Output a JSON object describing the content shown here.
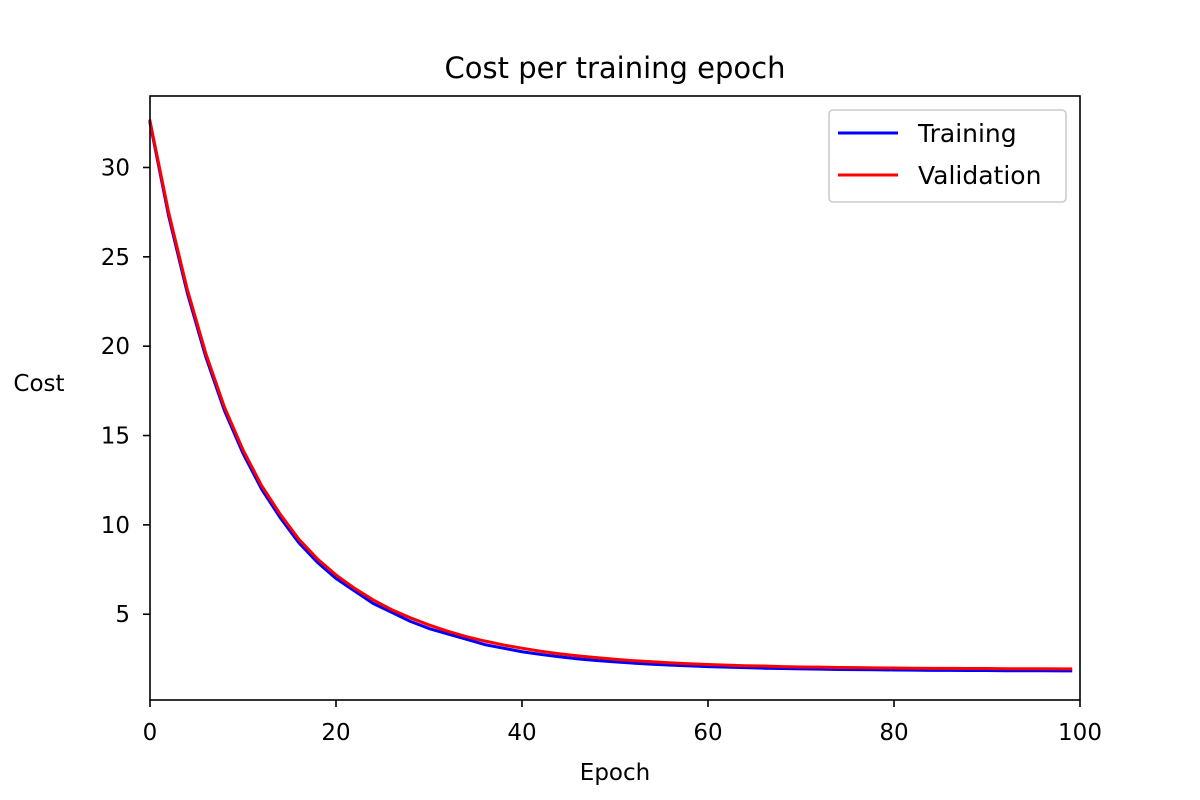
{
  "chart_data": {
    "type": "line",
    "title": "Cost per training epoch",
    "xlabel": "Epoch",
    "ylabel": "Cost",
    "xlim": [
      0,
      100
    ],
    "ylim": [
      0.2,
      34
    ],
    "xticks": [
      0,
      20,
      40,
      60,
      80,
      100
    ],
    "yticks": [
      5,
      10,
      15,
      20,
      25,
      30
    ],
    "grid": false,
    "legend_position": "upper right",
    "x": [
      0,
      2,
      4,
      6,
      8,
      10,
      12,
      14,
      16,
      18,
      20,
      22,
      24,
      26,
      28,
      30,
      32,
      34,
      36,
      38,
      40,
      42,
      44,
      46,
      48,
      50,
      52,
      54,
      56,
      58,
      60,
      62,
      64,
      66,
      68,
      70,
      72,
      74,
      76,
      78,
      80,
      82,
      84,
      86,
      88,
      90,
      92,
      94,
      96,
      98,
      99
    ],
    "series": [
      {
        "name": "Training",
        "color": "#0000ff",
        "values": [
          32.5,
          27.3,
          23.0,
          19.4,
          16.4,
          14.0,
          12.0,
          10.4,
          9.0,
          7.9,
          7.0,
          6.3,
          5.6,
          5.1,
          4.6,
          4.2,
          3.9,
          3.6,
          3.3,
          3.1,
          2.9,
          2.75,
          2.62,
          2.5,
          2.41,
          2.33,
          2.26,
          2.2,
          2.15,
          2.11,
          2.07,
          2.04,
          2.01,
          1.98,
          1.96,
          1.94,
          1.93,
          1.91,
          1.9,
          1.89,
          1.88,
          1.87,
          1.86,
          1.86,
          1.85,
          1.85,
          1.84,
          1.84,
          1.84,
          1.83,
          1.83
        ]
      },
      {
        "name": "Validation",
        "color": "#ff0000",
        "values": [
          32.6,
          27.5,
          23.2,
          19.6,
          16.6,
          14.2,
          12.2,
          10.6,
          9.2,
          8.1,
          7.2,
          6.45,
          5.8,
          5.25,
          4.8,
          4.4,
          4.05,
          3.75,
          3.5,
          3.28,
          3.1,
          2.93,
          2.79,
          2.67,
          2.57,
          2.48,
          2.4,
          2.34,
          2.28,
          2.23,
          2.19,
          2.15,
          2.12,
          2.1,
          2.07,
          2.05,
          2.04,
          2.02,
          2.01,
          2.0,
          1.99,
          1.98,
          1.97,
          1.97,
          1.96,
          1.96,
          1.95,
          1.95,
          1.95,
          1.94,
          1.94
        ]
      }
    ]
  }
}
